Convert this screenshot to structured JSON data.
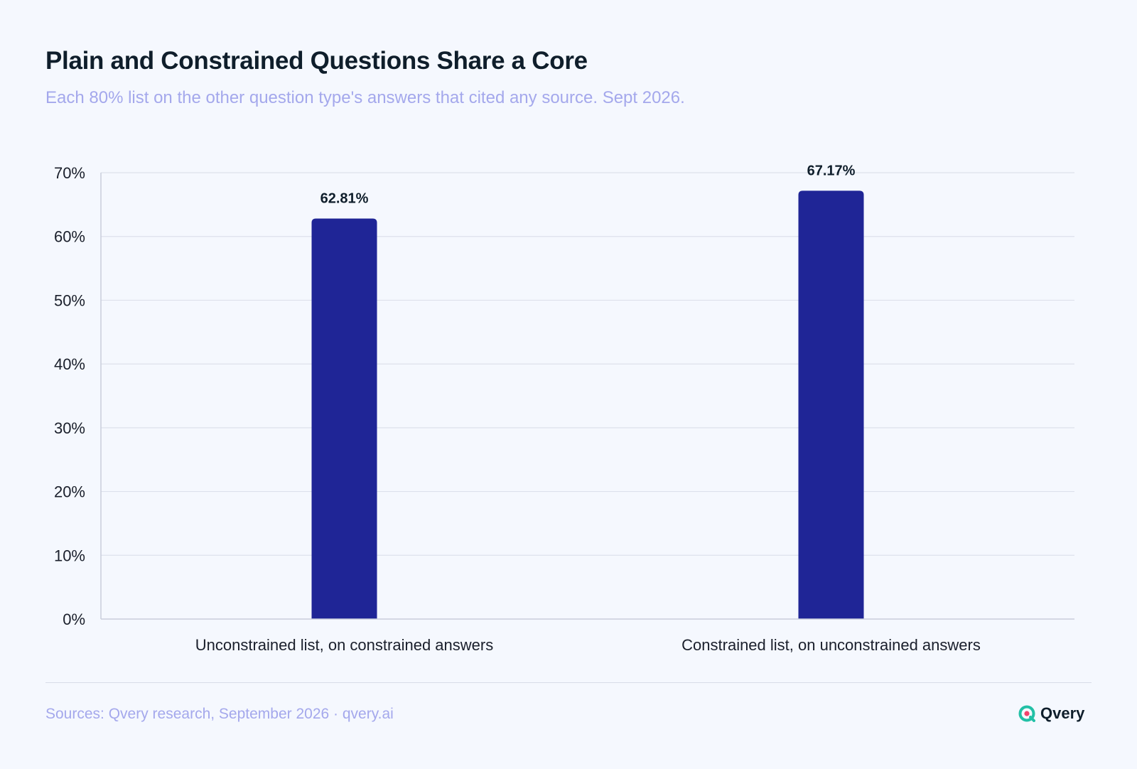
{
  "title": "Plain and Constrained Questions Share a Core",
  "subtitle": "Each 80% list on the other question type's answers that cited any source. Sept 2026.",
  "footer": {
    "source": "Sources: Qvery research, September 2026 · qvery.ai",
    "brand": "Qvery"
  },
  "colors": {
    "bar": "#1f2596",
    "brand_icon": "#22c0a6",
    "brand_icon_inner": "#f2436b"
  },
  "icons": {
    "brand": "qvery-logo-icon"
  },
  "chart_data": {
    "type": "bar",
    "categories": [
      "Unconstrained list, on constrained answers",
      "Constrained list, on unconstrained answers"
    ],
    "values": [
      62.81,
      67.17
    ],
    "value_labels": [
      "62.81%",
      "67.17%"
    ],
    "yticks": [
      "0%",
      "10%",
      "20%",
      "30%",
      "40%",
      "50%",
      "60%",
      "70%"
    ],
    "ylim": [
      0,
      70
    ],
    "grid": true,
    "legend": "none"
  }
}
